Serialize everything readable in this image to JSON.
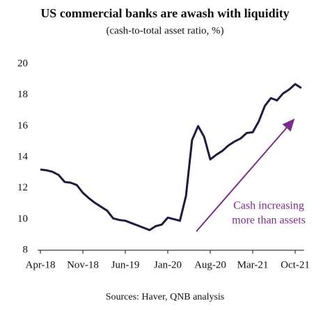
{
  "chart_data": {
    "type": "line",
    "title": "US commercial banks are awash with liquidity",
    "subtitle": "(cash-to-total asset ratio, %)",
    "source": "Sources: Haver, QNB analysis",
    "annotation": [
      "Cash increasing",
      "more than assets"
    ],
    "annotation_color": "#7b2c8c",
    "categories": [
      "Apr-18",
      null,
      null,
      null,
      null,
      null,
      null,
      "Nov-18",
      null,
      null,
      null,
      null,
      null,
      null,
      "Jun-19",
      null,
      null,
      null,
      null,
      null,
      null,
      "Jan-20",
      null,
      null,
      null,
      null,
      null,
      null,
      "Aug-20",
      null,
      null,
      null,
      null,
      null,
      null,
      "Mar-21",
      null,
      null,
      null,
      null,
      null,
      null,
      "Oct-21",
      null
    ],
    "series": [
      {
        "name": "Cash-to-total asset ratio",
        "color": "#1c1c3c",
        "values": [
          13.2,
          13.15,
          13.05,
          12.85,
          12.4,
          12.35,
          12.2,
          11.7,
          11.35,
          11.05,
          10.8,
          10.55,
          10.05,
          9.95,
          9.9,
          9.75,
          9.6,
          9.45,
          9.3,
          9.55,
          9.65,
          10.1,
          10.0,
          9.9,
          11.5,
          15.1,
          16.0,
          15.3,
          13.85,
          14.15,
          14.4,
          14.75,
          15.0,
          15.2,
          15.55,
          15.6,
          16.3,
          17.3,
          17.8,
          17.65,
          18.1,
          18.35,
          18.7,
          18.45
        ]
      }
    ],
    "ylim": [
      8,
      20
    ],
    "yticks": [
      8,
      10,
      12,
      14,
      16,
      18,
      20
    ],
    "grid": false
  }
}
